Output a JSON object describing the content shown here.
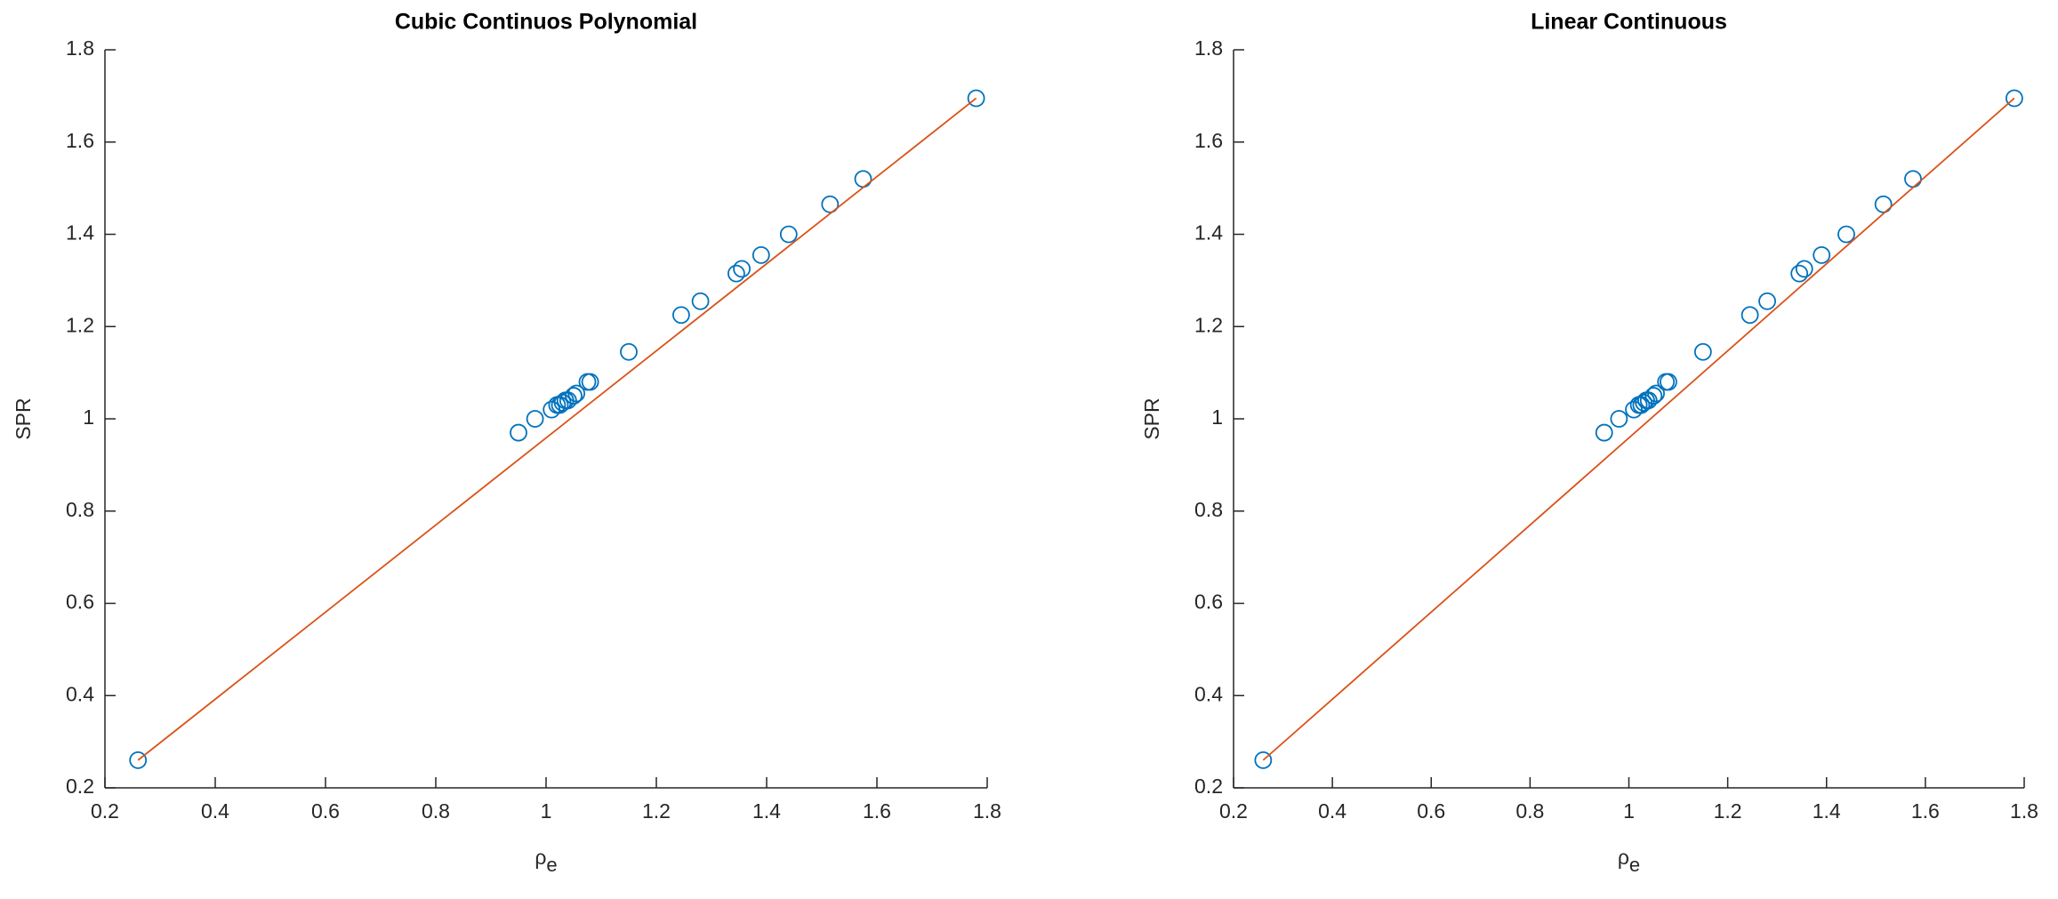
{
  "chart_data": [
    {
      "type": "scatter",
      "title": "Cubic Continuos Polynomial",
      "xlabel": {
        "text": "ρ",
        "subscript": "e"
      },
      "ylabel": "SPR",
      "xlim": [
        0.2,
        1.8
      ],
      "ylim": [
        0.2,
        1.8
      ],
      "xticks": [
        0.2,
        0.4,
        0.6,
        0.8,
        1,
        1.2,
        1.4,
        1.6,
        1.8
      ],
      "yticks": [
        0.2,
        0.4,
        0.6,
        0.8,
        1,
        1.2,
        1.4,
        1.6,
        1.8
      ],
      "series": [
        {
          "marker": "circle",
          "color": "#0072bd",
          "x": [
            0.26,
            0.95,
            0.98,
            1.01,
            1.02,
            1.025,
            1.03,
            1.035,
            1.04,
            1.05,
            1.055,
            1.075,
            1.08,
            1.15,
            1.245,
            1.28,
            1.345,
            1.355,
            1.39,
            1.44,
            1.515,
            1.575,
            1.78
          ],
          "values": [
            0.26,
            0.97,
            1.0,
            1.02,
            1.03,
            1.03,
            1.035,
            1.04,
            1.04,
            1.05,
            1.055,
            1.08,
            1.08,
            1.145,
            1.225,
            1.255,
            1.315,
            1.325,
            1.355,
            1.4,
            1.465,
            1.52,
            1.695
          ]
        },
        {
          "marker": "line",
          "color": "#d95319",
          "x": [
            0.26,
            1.78
          ],
          "values": [
            0.26,
            1.695
          ]
        }
      ]
    },
    {
      "type": "scatter",
      "title": "Linear Continuous",
      "xlabel": {
        "text": "ρ",
        "subscript": "e"
      },
      "ylabel": "SPR",
      "xlim": [
        0.2,
        1.8
      ],
      "ylim": [
        0.2,
        1.8
      ],
      "xticks": [
        0.2,
        0.4,
        0.6,
        0.8,
        1,
        1.2,
        1.4,
        1.6,
        1.8
      ],
      "yticks": [
        0.2,
        0.4,
        0.6,
        0.8,
        1,
        1.2,
        1.4,
        1.6,
        1.8
      ],
      "series": [
        {
          "marker": "circle",
          "color": "#0072bd",
          "x": [
            0.26,
            0.95,
            0.98,
            1.01,
            1.02,
            1.025,
            1.03,
            1.035,
            1.04,
            1.05,
            1.055,
            1.075,
            1.08,
            1.15,
            1.245,
            1.28,
            1.345,
            1.355,
            1.39,
            1.44,
            1.515,
            1.575,
            1.78
          ],
          "values": [
            0.26,
            0.97,
            1.0,
            1.02,
            1.03,
            1.03,
            1.035,
            1.04,
            1.04,
            1.05,
            1.055,
            1.08,
            1.08,
            1.145,
            1.225,
            1.255,
            1.315,
            1.325,
            1.355,
            1.4,
            1.465,
            1.52,
            1.695
          ]
        },
        {
          "marker": "line",
          "color": "#d95319",
          "x": [
            0.26,
            1.78
          ],
          "values": [
            0.26,
            1.695
          ]
        }
      ]
    }
  ]
}
